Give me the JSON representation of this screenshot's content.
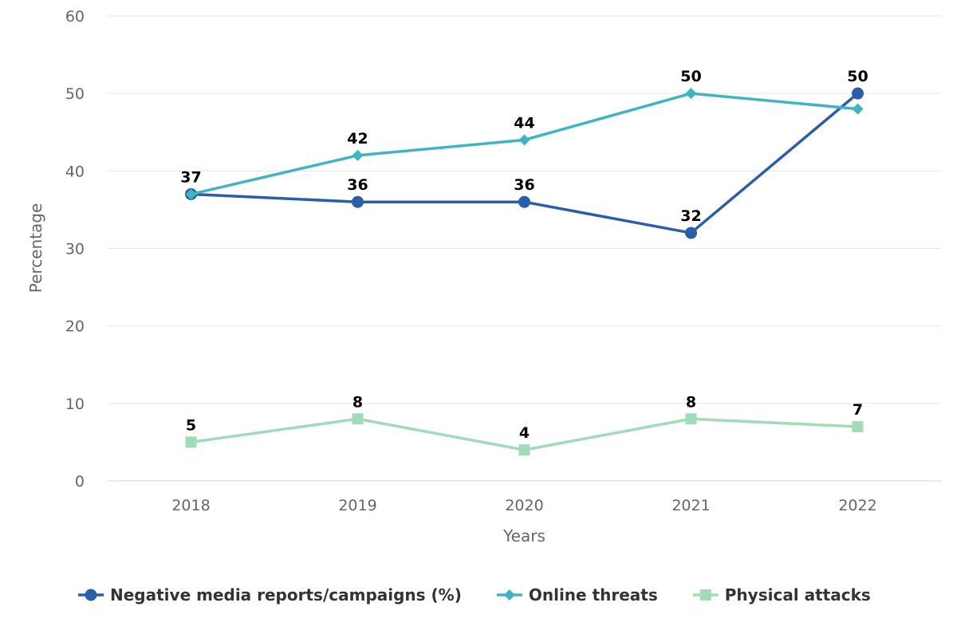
{
  "chart_data": {
    "type": "line",
    "title": "",
    "xlabel": "Years",
    "ylabel": "Percentage",
    "ylim": [
      0,
      60
    ],
    "yticks": [
      0,
      10,
      20,
      30,
      40,
      50,
      60
    ],
    "grid": true,
    "legend_position": "bottom",
    "categories": [
      "2018",
      "2019",
      "2020",
      "2021",
      "2022"
    ],
    "series": [
      {
        "name": "Negative media reports/campaigns (%)",
        "values": [
          37,
          36,
          36,
          32,
          50
        ],
        "color": "#2b5ea7",
        "marker": "circle",
        "labels": [
          "",
          "36",
          "36",
          "32",
          "50"
        ]
      },
      {
        "name": "Online threats",
        "values": [
          37,
          42,
          44,
          50,
          48
        ],
        "color": "#3fb5c1",
        "marker": "diamond",
        "labels": [
          "37",
          "42",
          "44",
          "50",
          ""
        ]
      },
      {
        "name": "Physical attacks",
        "values": [
          5,
          8,
          4,
          8,
          7
        ],
        "color": "#a2dbb8",
        "marker": "square",
        "labels": [
          "5",
          "8",
          "4",
          "8",
          "7"
        ]
      }
    ]
  }
}
